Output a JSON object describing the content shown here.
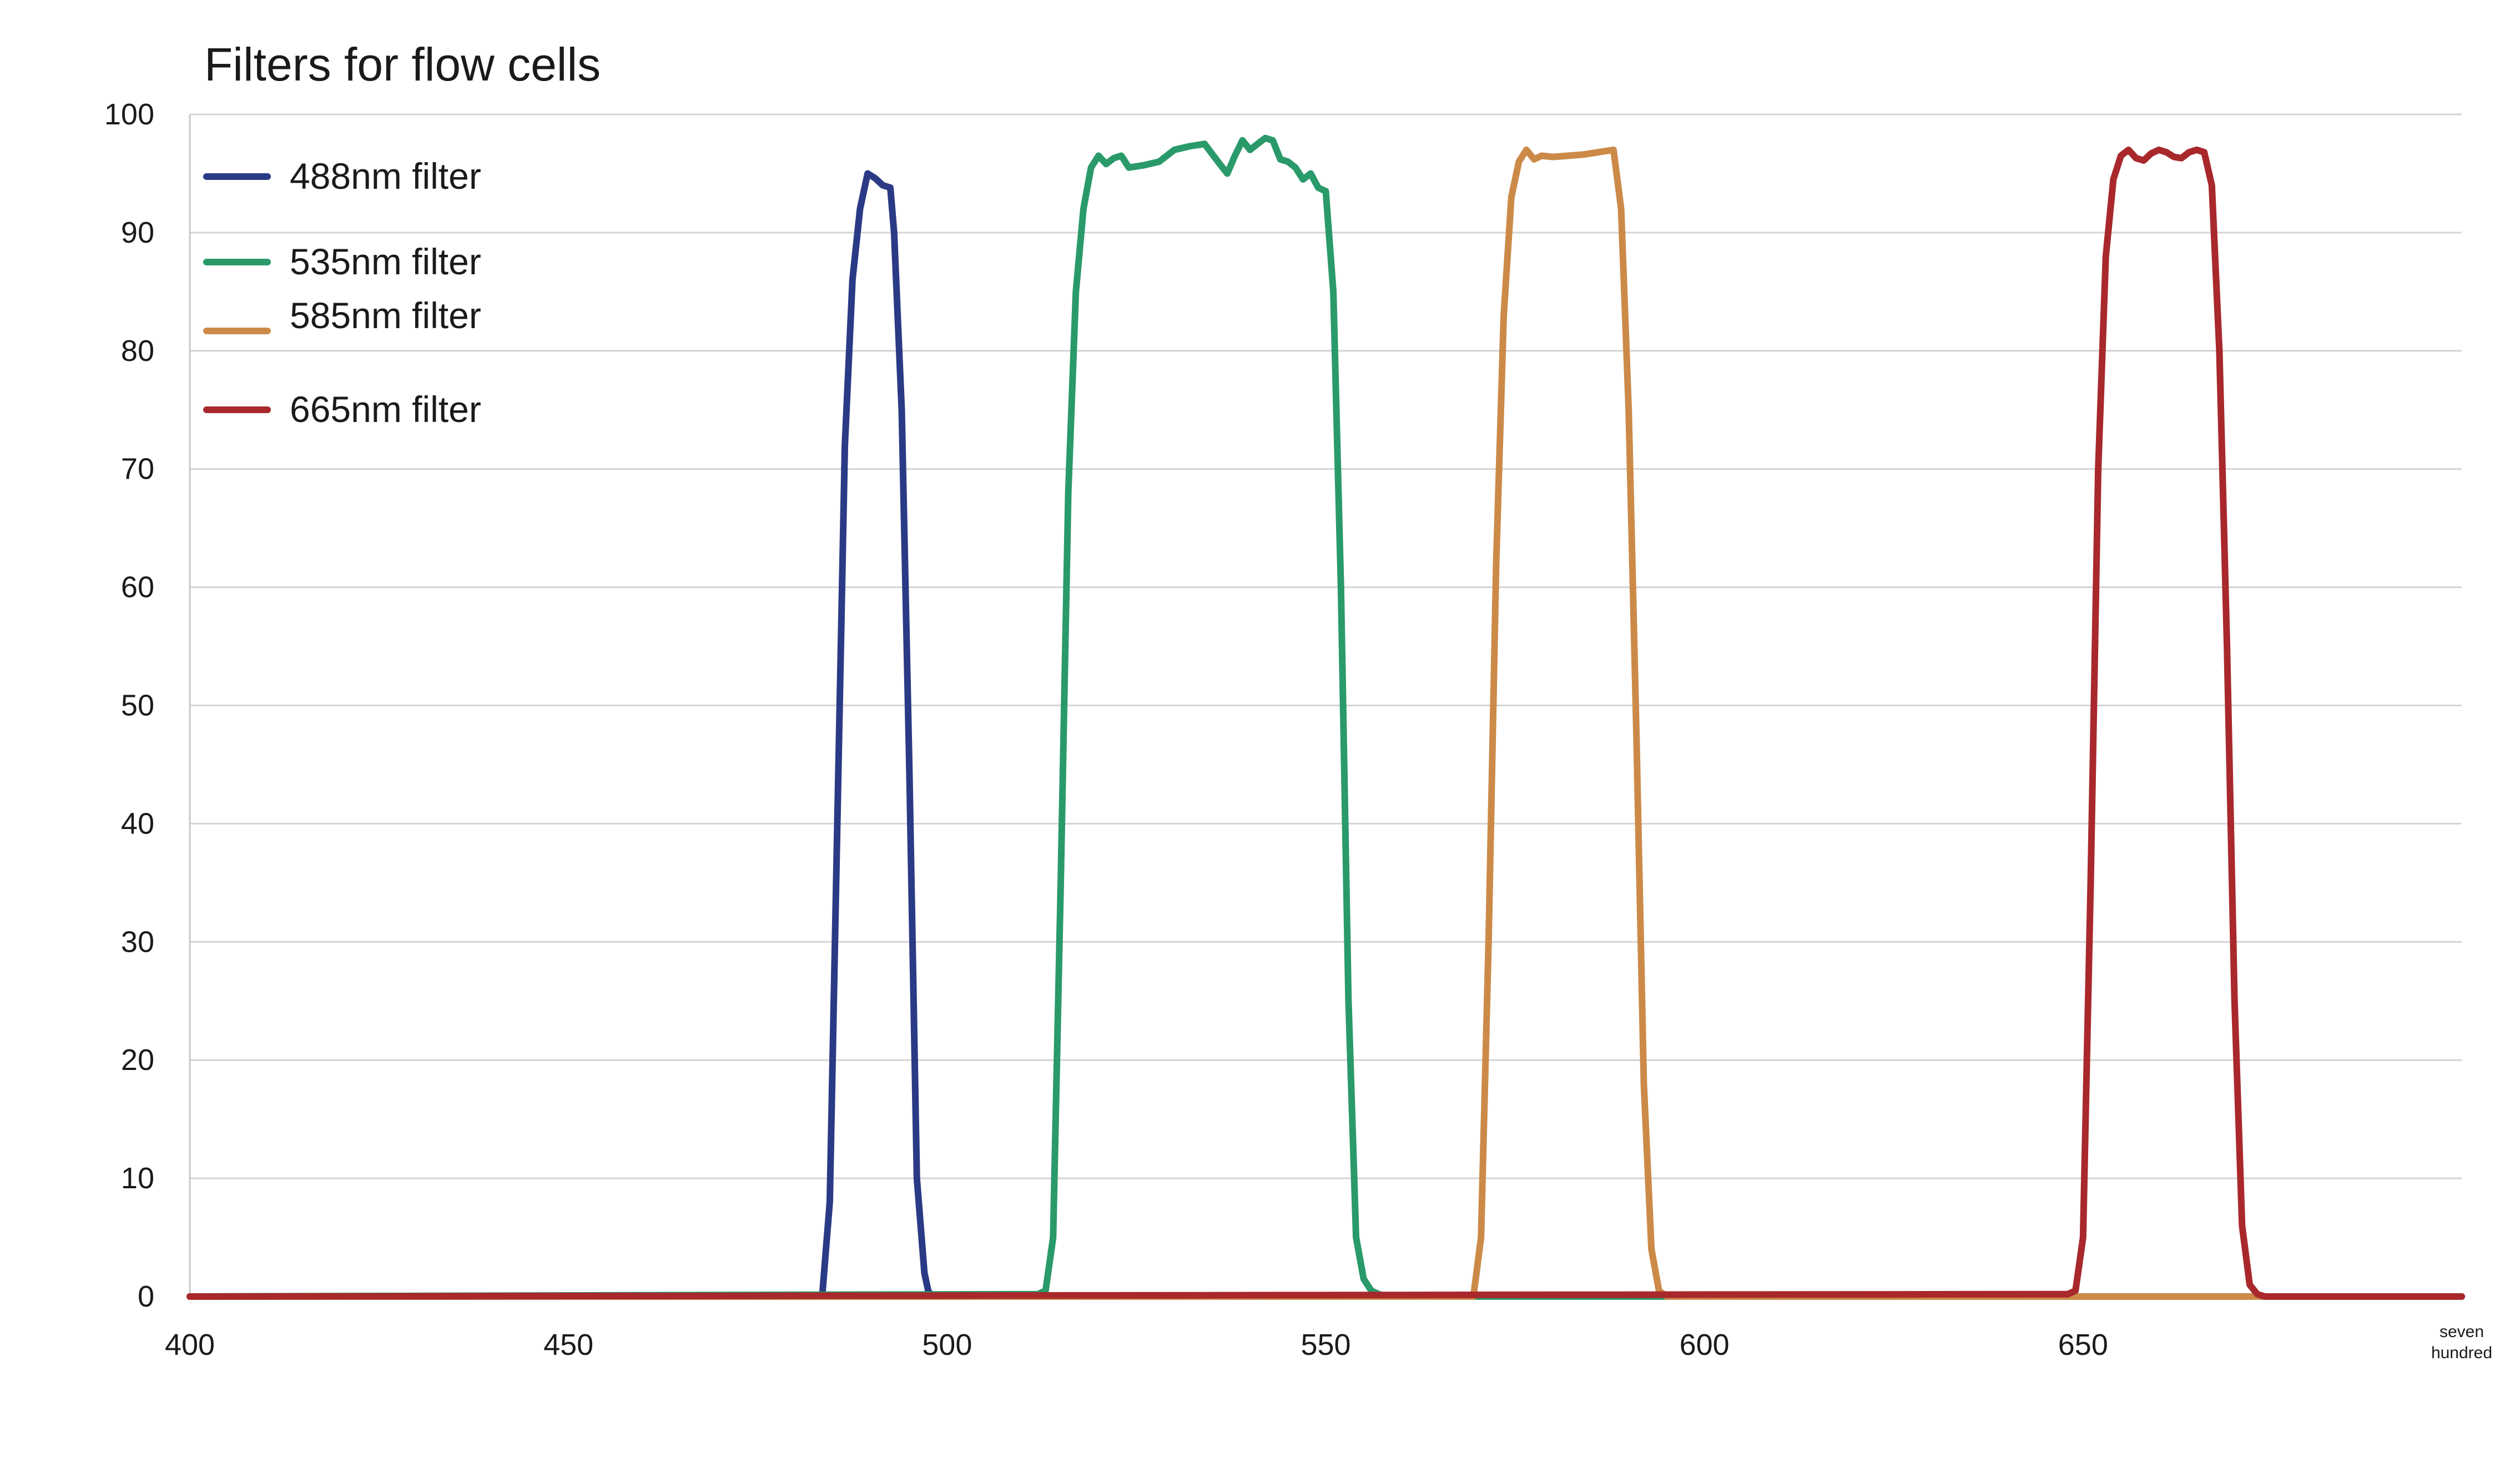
{
  "chart_data": {
    "type": "line",
    "title": "Filters for flow cells",
    "xlabel": "",
    "ylabel": "",
    "xlim": [
      400,
      700
    ],
    "ylim": [
      0,
      100
    ],
    "x_ticks": [
      {
        "value": 400,
        "label": "400"
      },
      {
        "value": 450,
        "label": "450"
      },
      {
        "value": 500,
        "label": "500"
      },
      {
        "value": 550,
        "label": "550"
      },
      {
        "value": 600,
        "label": "600"
      },
      {
        "value": 650,
        "label": "650"
      },
      {
        "value": 700,
        "label": "seven hundred"
      }
    ],
    "y_ticks": [
      0,
      10,
      20,
      30,
      40,
      50,
      60,
      70,
      80,
      90,
      100
    ],
    "grid": true,
    "legend_position": "top-left",
    "series": [
      {
        "name": "488nm filter",
        "color": "#2a3a85",
        "x": [
          400,
          483.5,
          484.5,
          485.5,
          486.5,
          487.5,
          488.5,
          489.5,
          490.5,
          491.5,
          492.5,
          493,
          494,
          495,
          496,
          497,
          497.5,
          498,
          700
        ],
        "y": [
          0,
          0,
          8,
          40,
          72,
          86,
          92,
          95,
          94.6,
          94,
          93.8,
          90,
          75,
          45,
          10,
          2,
          0.5,
          0,
          0
        ]
      },
      {
        "name": "535nm filter",
        "color": "#2a9a6a",
        "x": [
          400,
          512,
          513,
          514,
          515,
          516,
          517,
          518,
          519,
          520,
          521,
          522,
          523,
          524,
          526,
          528,
          530,
          532,
          534,
          536,
          537,
          538,
          539,
          540,
          541,
          542,
          543,
          544,
          545,
          546,
          547,
          548,
          549,
          550,
          551,
          552,
          553,
          554,
          555,
          556,
          557,
          558,
          559,
          560,
          700
        ],
        "y": [
          0,
          0.2,
          0.5,
          5,
          35,
          68,
          85,
          92,
          95.5,
          96.5,
          95.8,
          96.3,
          96.5,
          95.5,
          95.7,
          96,
          97,
          97.3,
          97.5,
          95.8,
          95,
          96.5,
          97.8,
          97,
          97.5,
          98,
          97.8,
          96.2,
          96,
          95.5,
          94.5,
          95,
          93.8,
          93.5,
          85,
          60,
          25,
          5,
          1.5,
          0.5,
          0.2,
          0,
          0,
          0,
          0
        ]
      },
      {
        "name": "585nm filter",
        "color": "#cc8a48",
        "x": [
          400,
          569.5,
          570.5,
          571.5,
          572.5,
          573.5,
          574.5,
          575.5,
          576.5,
          577.5,
          578.5,
          580,
          582,
          584,
          586,
          588,
          589,
          590,
          591,
          592,
          593,
          594,
          595,
          700
        ],
        "y": [
          0,
          0,
          5,
          30,
          62,
          83,
          93,
          96,
          97,
          96.2,
          96.5,
          96.4,
          96.5,
          96.6,
          96.8,
          97,
          92,
          75,
          48,
          18,
          4,
          0.5,
          0,
          0
        ]
      },
      {
        "name": "665nm filter",
        "color": "#a8282c",
        "x": [
          400,
          648,
          649,
          650,
          651,
          652,
          653,
          654,
          655,
          656,
          657,
          658,
          659,
          660,
          661,
          662,
          663,
          664,
          665,
          666,
          667,
          668,
          669,
          670,
          671,
          672,
          673,
          674,
          700
        ],
        "y": [
          0,
          0.2,
          0.5,
          5,
          35,
          70,
          88,
          94.5,
          96.5,
          97,
          96.3,
          96.1,
          96.7,
          97,
          96.8,
          96.4,
          96.3,
          96.8,
          97,
          96.8,
          94,
          80,
          55,
          25,
          6,
          1,
          0.2,
          0,
          0
        ]
      }
    ]
  }
}
